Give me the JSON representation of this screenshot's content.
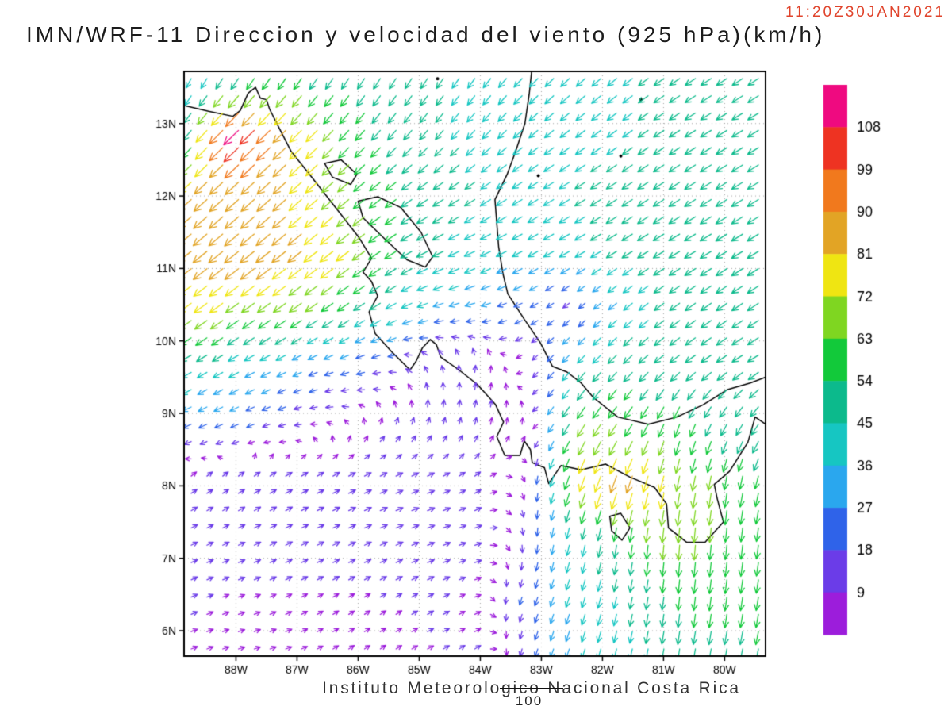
{
  "title": "IMN/WRF-11 Direccion y velocidad del viento (925 hPa)(km/h)",
  "timestamp": "11:20Z30JAN2021",
  "footer": {
    "text": "Instituto Meteorologico Nacional Costa Rica",
    "counter": "100"
  },
  "colors": {
    "timestamp_text": "#e0442c",
    "coastline": "#000000",
    "grid_dots": "#999999",
    "frame": "#000000"
  },
  "chart_data": {
    "type": "vector-field-map",
    "model": "IMN/WRF-11",
    "variable": "Direccion y velocidad del viento",
    "level": "925 hPa",
    "units": "km/h",
    "valid_time": "11:20Z30JAN2021",
    "grid": "dotted",
    "lon_range": [
      -88.85,
      -79.33
    ],
    "lat_range": [
      5.65,
      13.72
    ],
    "lon_ticks": [
      [
        -88,
        "88W"
      ],
      [
        -87,
        "87W"
      ],
      [
        -86,
        "86W"
      ],
      [
        -85,
        "85W"
      ],
      [
        -84,
        "84W"
      ],
      [
        -83,
        "83W"
      ],
      [
        -82,
        "82W"
      ],
      [
        -81,
        "81W"
      ],
      [
        -80,
        "80W"
      ]
    ],
    "lat_ticks": [
      [
        6,
        "6N"
      ],
      [
        7,
        "7N"
      ],
      [
        8,
        "8N"
      ],
      [
        9,
        "9N"
      ],
      [
        10,
        "10N"
      ],
      [
        11,
        "11N"
      ],
      [
        12,
        "12N"
      ],
      [
        13,
        "13N"
      ]
    ],
    "colorbar": {
      "position": "right",
      "levels": [
        9,
        18,
        27,
        36,
        45,
        54,
        63,
        72,
        81,
        90,
        99,
        108
      ],
      "colors": [
        "#9c1ddb",
        "#6b3ce8",
        "#2f63e9",
        "#2aa7ee",
        "#16c6c2",
        "#0cba8c",
        "#12c93a",
        "#7fd621",
        "#efe512",
        "#e2a425",
        "#f1791d",
        "#ee3322",
        "#ef0a80"
      ]
    },
    "wind_grid": {
      "lons": [
        -88.8,
        -88.0,
        -87.2,
        -86.4,
        -85.6,
        -84.8,
        -84.0,
        -83.2,
        -82.4,
        -81.6,
        -80.8,
        -80.0,
        -79.2
      ],
      "lats": [
        5.7,
        6.5,
        7.3,
        8.1,
        8.9,
        9.7,
        10.5,
        11.3,
        12.1,
        12.9,
        13.7
      ],
      "u": [
        [
          8,
          7,
          6,
          5,
          6,
          8,
          8,
          -6,
          -12,
          -10,
          -8,
          -10,
          -12
        ],
        [
          9,
          8,
          8,
          7,
          8,
          9,
          6,
          -8,
          -12,
          -10,
          -6,
          -8,
          -10
        ],
        [
          10,
          11,
          12,
          13,
          14,
          14,
          12,
          0,
          -10,
          -8,
          -5,
          -6,
          -8
        ],
        [
          8,
          10,
          12,
          13,
          13,
          12,
          8,
          2,
          -25,
          -30,
          -15,
          -10,
          -15
        ],
        [
          -25,
          -22,
          -15,
          -8,
          2,
          3,
          2,
          0,
          -35,
          -35,
          -20,
          -25,
          -30
        ],
        [
          -38,
          -35,
          -30,
          -25,
          -20,
          -5,
          2,
          -5,
          -28,
          -35,
          -38,
          -40,
          -42
        ],
        [
          -60,
          -58,
          -55,
          -50,
          -40,
          -35,
          -30,
          -20,
          -12,
          -30,
          -38,
          -42,
          -45
        ],
        [
          -68,
          -70,
          -68,
          -62,
          -50,
          -42,
          -38,
          -36,
          -38,
          -40,
          -42,
          -45,
          -45
        ],
        [
          -60,
          -62,
          -60,
          -50,
          -45,
          -40,
          -38,
          -36,
          -38,
          -40,
          -42,
          -44,
          -44
        ],
        [
          -30,
          -80,
          -62,
          -45,
          -35,
          -30,
          -30,
          -32,
          -34,
          -36,
          -40,
          -42,
          -42
        ],
        [
          -15,
          -25,
          -30,
          -28,
          -25,
          -25,
          -26,
          -30,
          -32,
          -35,
          -38,
          -40,
          -40
        ]
      ],
      "v": [
        [
          3,
          2,
          2,
          3,
          4,
          4,
          5,
          -18,
          -34,
          -40,
          -48,
          -50,
          -52
        ],
        [
          4,
          3,
          4,
          4,
          5,
          5,
          2,
          -22,
          -38,
          -45,
          -55,
          -58,
          -55
        ],
        [
          5,
          5,
          6,
          6,
          6,
          5,
          4,
          -15,
          -40,
          -55,
          -68,
          -62,
          -55
        ],
        [
          6,
          7,
          7,
          7,
          6,
          5,
          6,
          -8,
          -70,
          -85,
          -70,
          -60,
          -50
        ],
        [
          -12,
          -10,
          -5,
          2,
          8,
          12,
          10,
          6,
          -55,
          -50,
          -55,
          -45,
          -40
        ],
        [
          -22,
          -20,
          -15,
          -10,
          -5,
          10,
          12,
          -5,
          -30,
          -35,
          -30,
          -28,
          -25
        ],
        [
          -45,
          -42,
          -40,
          -35,
          -25,
          -12,
          -8,
          -10,
          -10,
          -25,
          -28,
          -30,
          -30
        ],
        [
          -55,
          -58,
          -55,
          -50,
          -35,
          -22,
          -18,
          -20,
          -22,
          -25,
          -25,
          -28,
          -28
        ],
        [
          -55,
          -58,
          -55,
          -45,
          -35,
          -28,
          -25,
          -22,
          -24,
          -26,
          -28,
          -28,
          -28
        ],
        [
          -38,
          -78,
          -60,
          -48,
          -40,
          -35,
          -32,
          -28,
          -26,
          -26,
          -26,
          -26,
          -26
        ],
        [
          -30,
          -40,
          -45,
          -42,
          -40,
          -38,
          -36,
          -32,
          -30,
          -28,
          -26,
          -26,
          -26
        ]
      ]
    },
    "map": {
      "coastlines": [
        [
          [
            -88.85,
            13.25
          ],
          [
            -88.45,
            13.17
          ],
          [
            -88.05,
            13.1
          ],
          [
            -87.93,
            13.18
          ],
          [
            -87.8,
            13.42
          ],
          [
            -87.68,
            13.5
          ],
          [
            -87.6,
            13.35
          ],
          [
            -87.5,
            13.33
          ],
          [
            -87.45,
            13.2
          ],
          [
            -87.3,
            12.95
          ],
          [
            -87.1,
            12.62
          ],
          [
            -86.75,
            12.25
          ],
          [
            -86.35,
            11.82
          ],
          [
            -85.98,
            11.42
          ],
          [
            -85.78,
            11.14
          ],
          [
            -85.92,
            10.95
          ],
          [
            -85.78,
            10.82
          ],
          [
            -85.68,
            10.62
          ],
          [
            -85.82,
            10.4
          ],
          [
            -85.72,
            10.1
          ],
          [
            -85.45,
            9.85
          ],
          [
            -85.15,
            9.6
          ],
          [
            -85.05,
            9.72
          ],
          [
            -84.95,
            9.9
          ],
          [
            -84.82,
            10.02
          ],
          [
            -84.72,
            9.95
          ],
          [
            -84.65,
            9.78
          ],
          [
            -84.35,
            9.6
          ],
          [
            -84.05,
            9.4
          ],
          [
            -83.75,
            9.12
          ],
          [
            -83.62,
            8.88
          ],
          [
            -83.73,
            8.68
          ],
          [
            -83.6,
            8.42
          ],
          [
            -83.35,
            8.42
          ],
          [
            -83.28,
            8.62
          ],
          [
            -83.18,
            8.5
          ],
          [
            -83.15,
            8.32
          ],
          [
            -82.95,
            8.25
          ],
          [
            -82.88,
            8.03
          ],
          [
            -82.68,
            8.28
          ],
          [
            -82.35,
            8.22
          ],
          [
            -81.95,
            8.3
          ],
          [
            -81.55,
            8.12
          ],
          [
            -81.15,
            7.98
          ],
          [
            -80.95,
            7.75
          ],
          [
            -80.92,
            7.42
          ],
          [
            -80.62,
            7.22
          ],
          [
            -80.32,
            7.22
          ],
          [
            -80.02,
            7.5
          ],
          [
            -80.12,
            7.82
          ],
          [
            -80.17,
            8.02
          ],
          [
            -79.92,
            8.2
          ],
          [
            -79.62,
            8.6
          ],
          [
            -79.5,
            8.95
          ],
          [
            -79.33,
            8.85
          ]
        ],
        [
          [
            -79.33,
            9.5
          ],
          [
            -79.58,
            9.42
          ],
          [
            -79.95,
            9.33
          ],
          [
            -80.35,
            9.12
          ],
          [
            -80.78,
            8.95
          ],
          [
            -81.25,
            8.85
          ],
          [
            -81.75,
            8.95
          ],
          [
            -82.15,
            9.22
          ],
          [
            -82.35,
            9.42
          ],
          [
            -82.58,
            9.57
          ],
          [
            -82.82,
            9.65
          ],
          [
            -83.02,
            9.98
          ],
          [
            -83.28,
            10.3
          ],
          [
            -83.55,
            10.65
          ],
          [
            -83.63,
            10.93
          ],
          [
            -83.7,
            11.3
          ],
          [
            -83.76,
            11.95
          ],
          [
            -83.56,
            12.3
          ],
          [
            -83.42,
            12.62
          ],
          [
            -83.27,
            13.0
          ],
          [
            -83.2,
            13.4
          ],
          [
            -83.16,
            13.72
          ]
        ],
        [
          [
            -86.0,
            11.93
          ],
          [
            -85.68,
            11.99
          ],
          [
            -85.3,
            11.84
          ],
          [
            -84.97,
            11.5
          ],
          [
            -84.78,
            11.16
          ],
          [
            -84.9,
            11.02
          ],
          [
            -85.2,
            11.12
          ],
          [
            -85.58,
            11.42
          ],
          [
            -85.92,
            11.7
          ],
          [
            -86.0,
            11.93
          ]
        ],
        [
          [
            -86.55,
            12.45
          ],
          [
            -86.28,
            12.5
          ],
          [
            -86.02,
            12.3
          ],
          [
            -86.12,
            12.16
          ],
          [
            -86.42,
            12.26
          ],
          [
            -86.55,
            12.45
          ]
        ],
        [
          [
            -81.88,
            7.58
          ],
          [
            -81.7,
            7.62
          ],
          [
            -81.55,
            7.42
          ],
          [
            -81.68,
            7.25
          ],
          [
            -81.85,
            7.38
          ],
          [
            -81.88,
            7.58
          ]
        ]
      ],
      "islands": [
        [
          -81.7,
          12.55
        ],
        [
          -81.37,
          13.33
        ],
        [
          -83.05,
          12.28
        ],
        [
          -84.7,
          13.62
        ]
      ]
    }
  }
}
